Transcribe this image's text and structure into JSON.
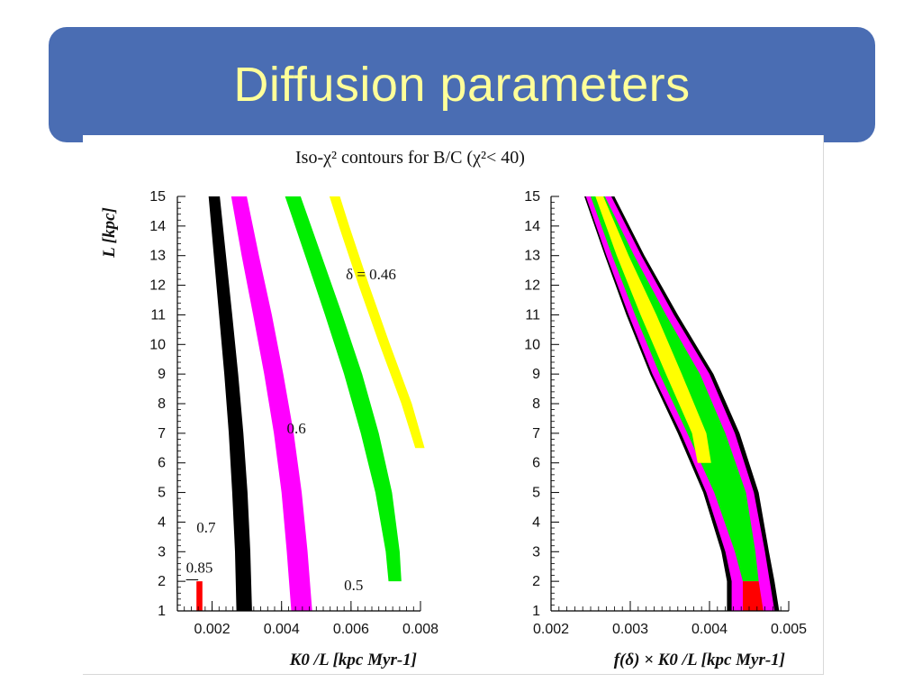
{
  "slide": {
    "title": "Diffusion parameters",
    "banner_color": "#4a6db3",
    "title_color": "#ffff99"
  },
  "figure": {
    "title": "Iso-χ² contours for B/C   (χ²< 40)"
  },
  "chart_data": [
    {
      "type": "area",
      "title": "Iso-χ² contours for B/C   (χ²< 40)",
      "ylabel": "L [kpc]",
      "xlabel": "K0 /L [kpc Myr-1]",
      "xlim": [
        0.001,
        0.008
      ],
      "ylim": [
        1,
        15
      ],
      "xticks": [
        0.002,
        0.004,
        0.006,
        0.008
      ],
      "xtick_labels": [
        "0.002",
        "0.004",
        "0.006",
        "0.008"
      ],
      "yticks": [
        1,
        2,
        3,
        4,
        5,
        6,
        7,
        8,
        9,
        10,
        11,
        12,
        13,
        14,
        15
      ],
      "ytick_labels": [
        "1",
        "2",
        "3",
        "4",
        "5",
        "6",
        "7",
        "8",
        "9",
        "10",
        "11",
        "12",
        "13",
        "14",
        "15"
      ],
      "series": [
        {
          "name": "0.85",
          "color": "#ff0000",
          "y": [
            1,
            2
          ],
          "x_left": [
            0.00155,
            0.00155
          ],
          "x_right": [
            0.00172,
            0.00172
          ]
        },
        {
          "name": "0.7",
          "color": "#000000",
          "y": [
            1,
            3,
            5,
            7,
            9,
            11,
            13,
            15
          ],
          "x_left": [
            0.0027,
            0.00266,
            0.00258,
            0.00248,
            0.00235,
            0.0022,
            0.00205,
            0.0019
          ],
          "x_right": [
            0.00315,
            0.0031,
            0.00302,
            0.0029,
            0.00275,
            0.00258,
            0.0024,
            0.00222
          ]
        },
        {
          "name": "0.6",
          "color": "#ff00ff",
          "y": [
            1,
            3,
            5,
            7,
            9,
            11,
            13,
            15
          ],
          "x_left": [
            0.00428,
            0.00415,
            0.004,
            0.00378,
            0.0035,
            0.00318,
            0.00285,
            0.00255
          ],
          "x_right": [
            0.00488,
            0.00475,
            0.00458,
            0.00435,
            0.00405,
            0.00372,
            0.00335,
            0.003
          ]
        },
        {
          "name": "0.5",
          "color": "#00ee00",
          "y": [
            2,
            3,
            5,
            7,
            9,
            11,
            13,
            15
          ],
          "x_left": [
            0.00708,
            0.007,
            0.0067,
            0.00628,
            0.0058,
            0.00525,
            0.00468,
            0.0041
          ],
          "x_right": [
            0.00745,
            0.0074,
            0.00718,
            0.0068,
            0.00632,
            0.00575,
            0.00515,
            0.00455
          ]
        },
        {
          "name": "δ = 0.46",
          "color": "#ffff00",
          "y": [
            6.5,
            8,
            10,
            12,
            14,
            15
          ],
          "x_left": [
            0.00785,
            0.00745,
            0.00682,
            0.00622,
            0.00565,
            0.00538
          ],
          "x_right": [
            0.00812,
            0.00775,
            0.00712,
            0.00652,
            0.00595,
            0.00568
          ]
        }
      ],
      "annotations": [
        "0.85",
        "0.7",
        "0.6",
        "0.5",
        "δ = 0.46"
      ]
    },
    {
      "type": "area",
      "ylabel": "",
      "xlabel": "f(δ) × K0 /L [kpc Myr-1]",
      "xlim": [
        0.002,
        0.005
      ],
      "ylim": [
        1,
        15
      ],
      "xticks": [
        0.002,
        0.003,
        0.004,
        0.005
      ],
      "xtick_labels": [
        "0.002",
        "0.003",
        "0.004",
        "0.005"
      ],
      "yticks": [
        1,
        2,
        3,
        4,
        5,
        6,
        7,
        8,
        9,
        10,
        11,
        12,
        13,
        14,
        15
      ],
      "ytick_labels": [
        "1",
        "2",
        "3",
        "4",
        "5",
        "6",
        "7",
        "8",
        "9",
        "10",
        "11",
        "12",
        "13",
        "14",
        "15"
      ],
      "series": [
        {
          "color": "#000000",
          "y": [
            1,
            2,
            3,
            5,
            7,
            9,
            11,
            13,
            15
          ],
          "x_left": [
            0.00422,
            0.00422,
            0.00415,
            0.00392,
            0.0036,
            0.00325,
            0.00295,
            0.00268,
            0.00242
          ],
          "x_right": [
            0.00488,
            0.00482,
            0.00475,
            0.00462,
            0.00438,
            0.00405,
            0.0036,
            0.00318,
            0.0028
          ]
        },
        {
          "color": "#ff00ff",
          "y": [
            1,
            2,
            3,
            5,
            7,
            9,
            11,
            13,
            15
          ],
          "x_left": [
            0.00428,
            0.00428,
            0.0042,
            0.00396,
            0.00364,
            0.00328,
            0.00298,
            0.0027,
            0.00244
          ],
          "x_right": [
            0.00482,
            0.00476,
            0.0047,
            0.00456,
            0.00432,
            0.004,
            0.00355,
            0.00314,
            0.00276
          ]
        },
        {
          "color": "#00ee00",
          "y": [
            2,
            3,
            5,
            7,
            9,
            11,
            13,
            15
          ],
          "x_left": [
            0.00442,
            0.00432,
            0.00406,
            0.00372,
            0.00337,
            0.00306,
            0.00277,
            0.0025
          ],
          "x_right": [
            0.00462,
            0.00458,
            0.00446,
            0.0042,
            0.00388,
            0.00345,
            0.00305,
            0.00268
          ]
        },
        {
          "color": "#ffff00",
          "y": [
            6,
            7,
            9,
            11,
            13,
            15
          ],
          "x_left": [
            0.00385,
            0.00378,
            0.00345,
            0.00313,
            0.00283,
            0.00256
          ],
          "x_right": [
            0.00402,
            0.00396,
            0.00365,
            0.00333,
            0.00298,
            0.00266
          ]
        },
        {
          "color": "#ff0000",
          "y": [
            1,
            2
          ],
          "x_left": [
            0.00442,
            0.00442
          ],
          "x_right": [
            0.00468,
            0.00462
          ]
        }
      ]
    }
  ]
}
